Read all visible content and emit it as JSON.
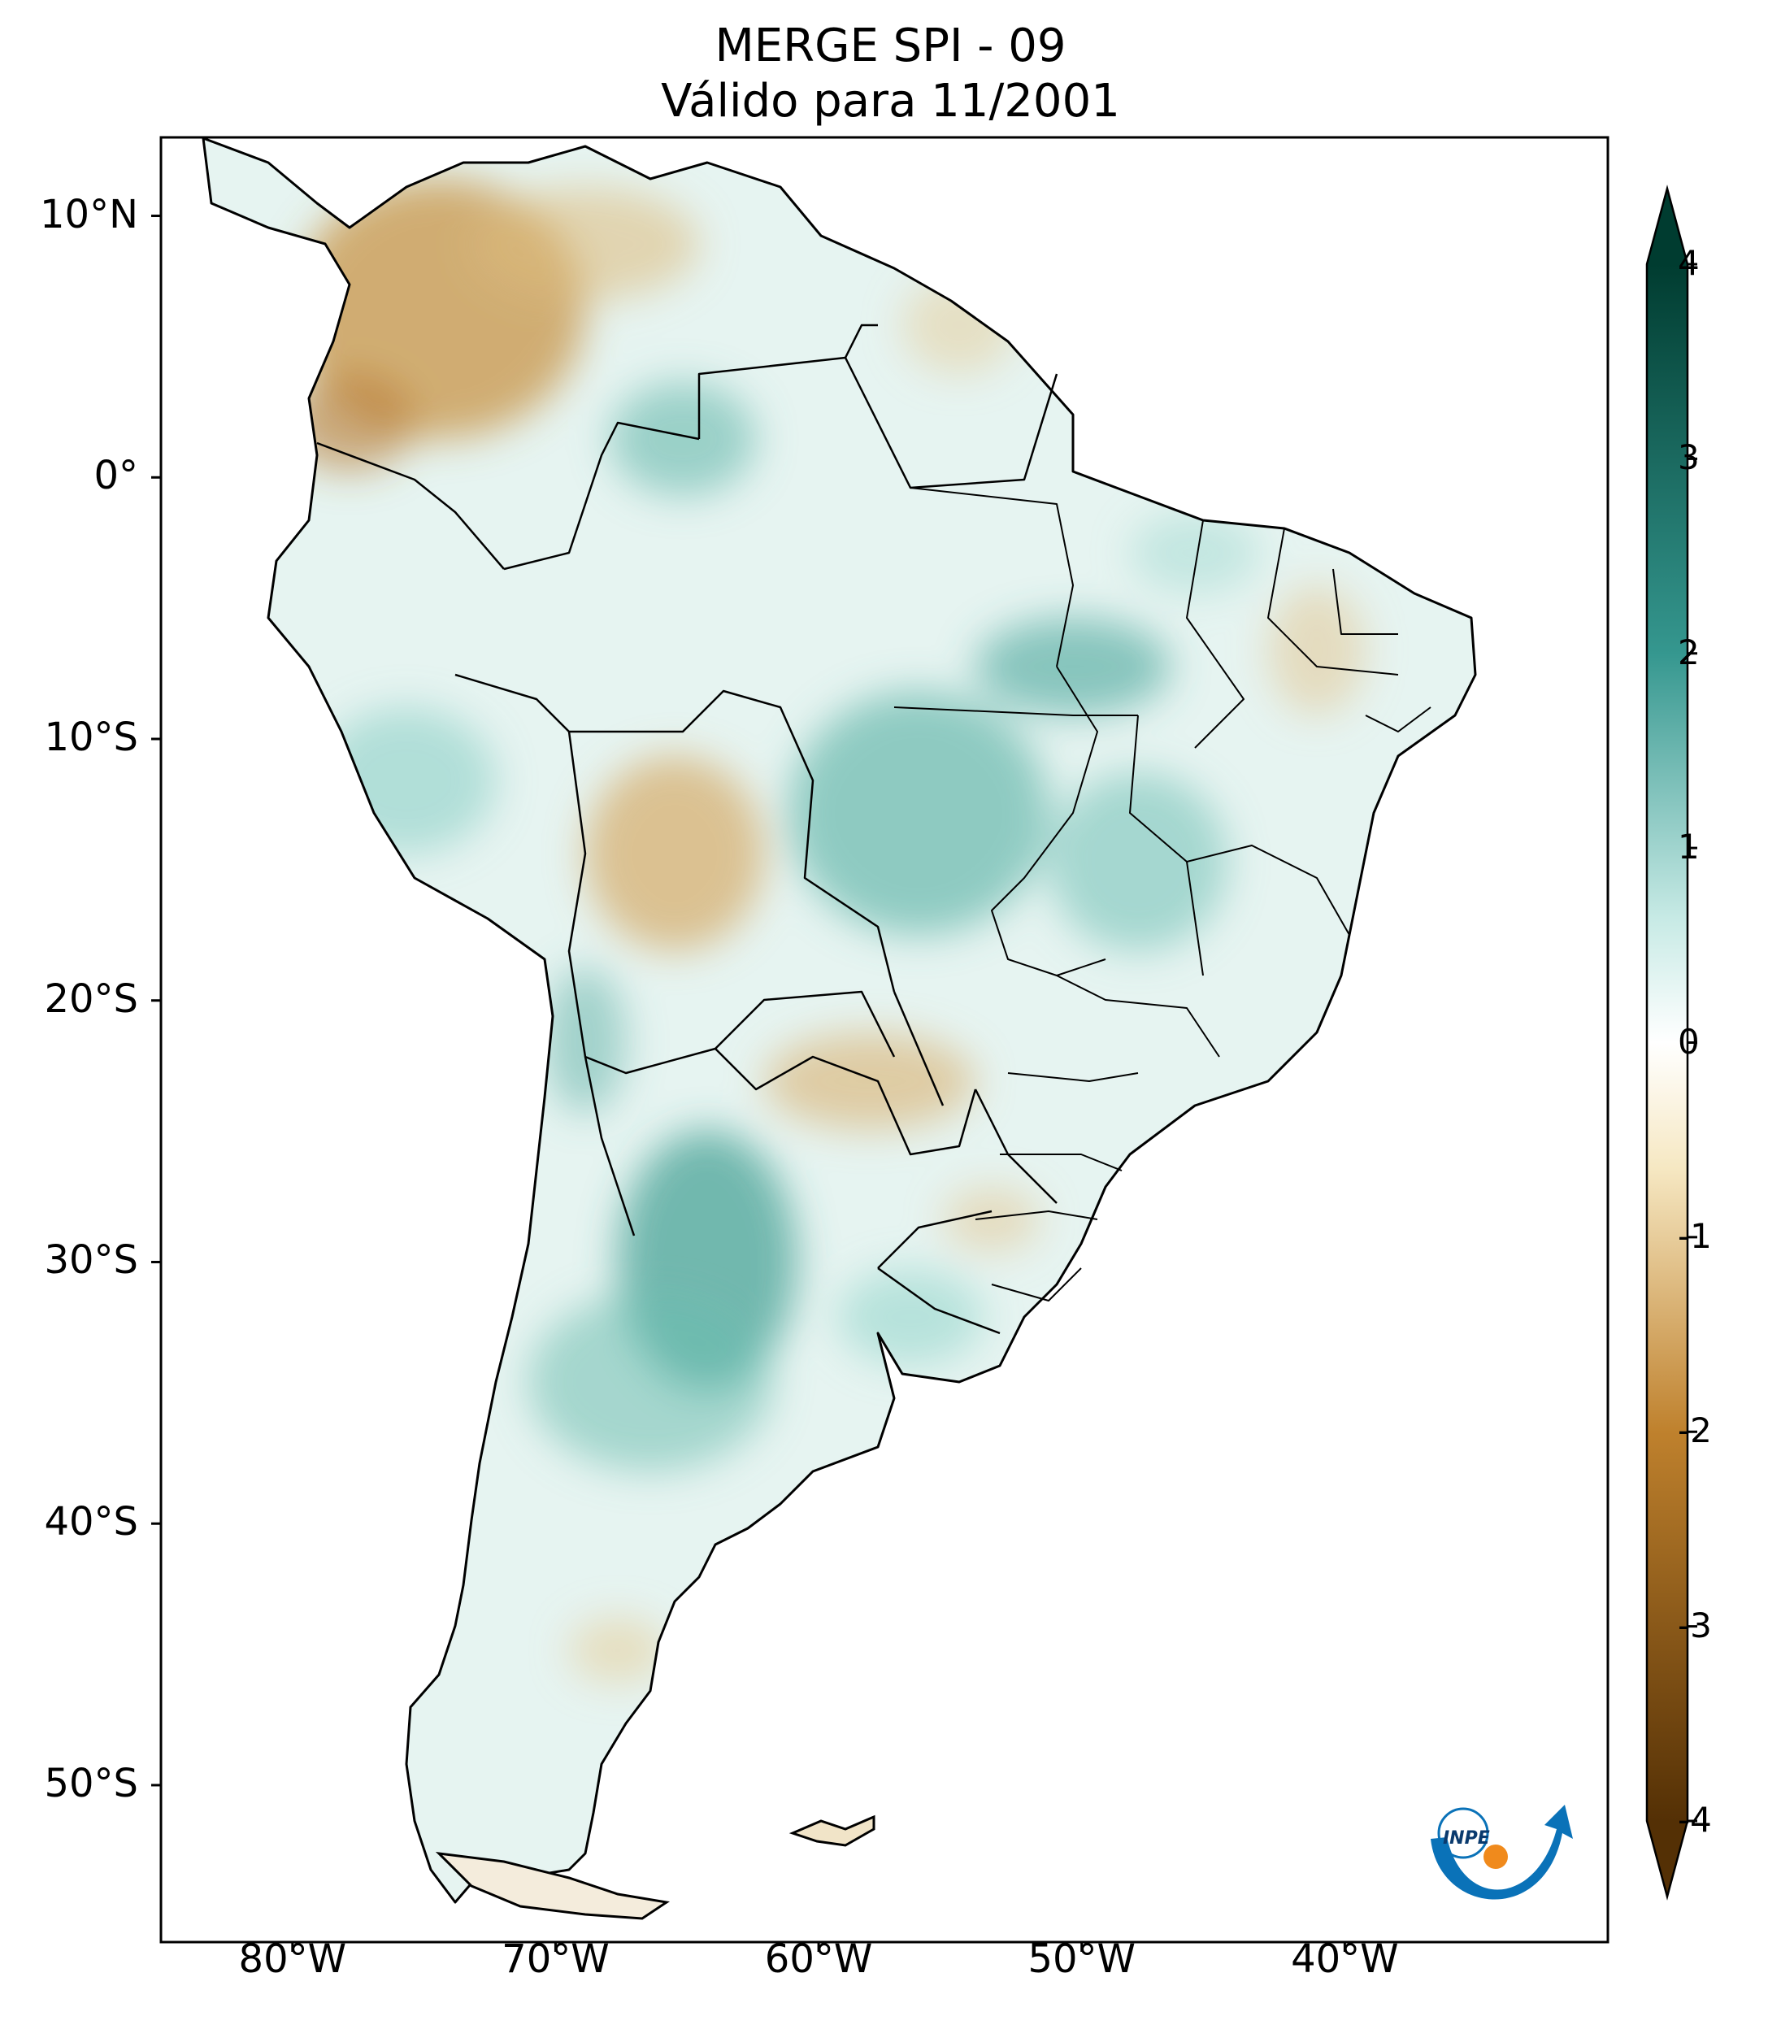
{
  "title": {
    "line1": "MERGE   SPI - 09",
    "line2": "Válido para 11/2001"
  },
  "map": {
    "lat_labels": [
      "10°N",
      "0°",
      "10°S",
      "20°S",
      "30°S",
      "40°S",
      "50°S"
    ],
    "lat_values": [
      10,
      0,
      -10,
      -20,
      -30,
      -40,
      -50
    ],
    "lon_labels": [
      "80°W",
      "70°W",
      "60°W",
      "50°W",
      "40°W"
    ],
    "lon_values": [
      -80,
      -70,
      -60,
      -50,
      -40
    ],
    "extent": {
      "lon_min": -85,
      "lon_max": -30,
      "lat_min": -56,
      "lat_max": 13
    }
  },
  "colorbar": {
    "labels": [
      "4",
      "3",
      "2",
      "1",
      "0",
      "-1",
      "-2",
      "-3",
      "-4"
    ],
    "values": [
      4,
      3,
      2,
      1,
      0,
      -1,
      -2,
      -3,
      -4
    ],
    "colors": {
      "dry_max": "#543005",
      "dry_mid": "#bf812d",
      "dry_light": "#f6e8c3",
      "neutral": "#ffffff",
      "wet_light": "#c7eae5",
      "wet_mid": "#35978f",
      "wet_max": "#003c30"
    }
  },
  "logo": {
    "text": "INPE"
  }
}
